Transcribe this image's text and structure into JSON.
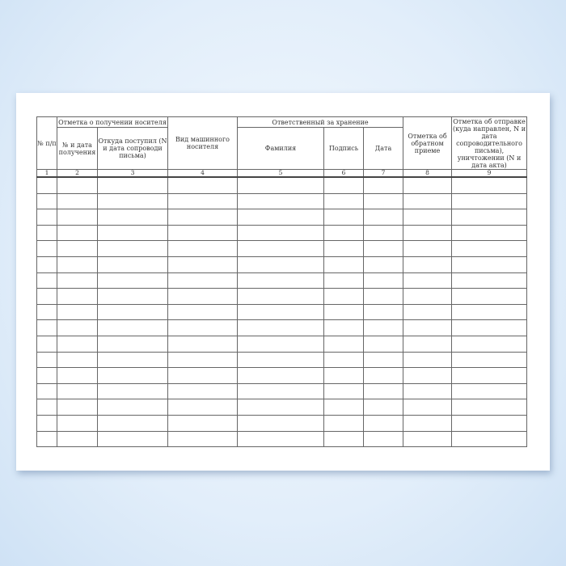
{
  "form": {
    "headers": {
      "num": "№ п/п",
      "receipt_group": "Отметка о получении носителя",
      "receipt_no_date": "№ и дата получения",
      "receipt_from": "Откуда поступил (N и дата сопроводи письма)",
      "media_type": "Вид машинного носителя",
      "custodian_group": "Ответственный за хранение",
      "surname": "Фамилия",
      "signature": "Подпись",
      "date": "Дата",
      "return_mark": "Отметка об обратном приеме",
      "dispatch_mark": "Отметка об отправке (куда направлен, N и дата сопроводительного письма), уничтожении (N и дата акта)"
    },
    "column_numbers": [
      "1",
      "2",
      "3",
      "4",
      "5",
      "6",
      "7",
      "8",
      "9"
    ],
    "empty_rows": 17
  }
}
